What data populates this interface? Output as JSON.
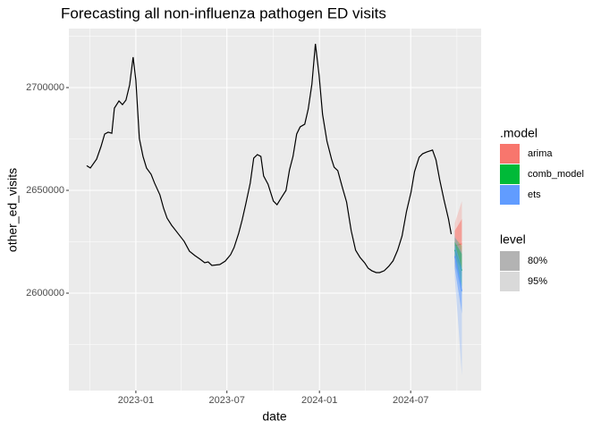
{
  "chart_data": {
    "type": "forecast",
    "title": "Forecasting all non-influenza pathogen ED visits",
    "x_label": "date",
    "y_label": "other_ed_visits",
    "xlim": [
      2022.635,
      2024.881
    ],
    "ylim": [
      2552600,
      2728700
    ],
    "xticks": [
      {
        "value": 2023.0,
        "label": "2023-01"
      },
      {
        "value": 2023.496,
        "label": "2023-07"
      },
      {
        "value": 2024.0,
        "label": "2024-01"
      },
      {
        "value": 2024.497,
        "label": "2024-07"
      }
    ],
    "x_minor_ticks": [
      2022.75,
      2023.247,
      2023.748,
      2024.249,
      2024.749
    ],
    "yticks": [
      2600000,
      2650000,
      2700000
    ],
    "y_minor_ticks": [
      2575000,
      2625000,
      2675000,
      2725000
    ],
    "grid": true,
    "history": {
      "color": "#000000",
      "x": [
        2022.732,
        2022.752,
        2022.786,
        2022.81,
        2022.83,
        2022.849,
        2022.869,
        2022.883,
        2022.908,
        2022.927,
        2022.946,
        2022.966,
        2022.985,
        2023.0,
        2023.019,
        2023.039,
        2023.058,
        2023.083,
        2023.102,
        2023.131,
        2023.151,
        2023.17,
        2023.195,
        2023.229,
        2023.263,
        2023.292,
        2023.321,
        2023.35,
        2023.375,
        2023.394,
        2023.414,
        2023.457,
        2023.487,
        2023.516,
        2023.535,
        2023.56,
        2023.579,
        2023.599,
        2023.623,
        2023.642,
        2023.662,
        2023.681,
        2023.696,
        2023.72,
        2023.749,
        2023.769,
        2023.793,
        2023.818,
        2023.837,
        2023.856,
        2023.876,
        2023.895,
        2023.92,
        2023.939,
        2023.959,
        2023.978,
        2023.998,
        2024.017,
        2024.041,
        2024.066,
        2024.08,
        2024.1,
        2024.124,
        2024.148,
        2024.173,
        2024.197,
        2024.221,
        2024.246,
        2024.265,
        2024.285,
        2024.309,
        2024.328,
        2024.353,
        2024.377,
        2024.401,
        2024.426,
        2024.45,
        2024.474,
        2024.499,
        2024.518,
        2024.543,
        2024.562,
        2024.586,
        2024.616,
        2024.635,
        2024.655,
        2024.679,
        2024.703,
        2024.718
      ],
      "values": [
        2662000,
        2660900,
        2665200,
        2671300,
        2677400,
        2678300,
        2677800,
        2690000,
        2693500,
        2691700,
        2693900,
        2701300,
        2714800,
        2703500,
        2675200,
        2666500,
        2660900,
        2657800,
        2653500,
        2647800,
        2641300,
        2636500,
        2633000,
        2629100,
        2625200,
        2620400,
        2618300,
        2616500,
        2614800,
        2615200,
        2613500,
        2613900,
        2615600,
        2618700,
        2622200,
        2629100,
        2635600,
        2643500,
        2653500,
        2665700,
        2667400,
        2666500,
        2657000,
        2653000,
        2644800,
        2643000,
        2646500,
        2650000,
        2660000,
        2666500,
        2677400,
        2680900,
        2682200,
        2689600,
        2701700,
        2721300,
        2706100,
        2687000,
        2673900,
        2665200,
        2661300,
        2659600,
        2651700,
        2644300,
        2630400,
        2620900,
        2617400,
        2614800,
        2612200,
        2610900,
        2610000,
        2610000,
        2610900,
        2613000,
        2615700,
        2620900,
        2627800,
        2639600,
        2649100,
        2659100,
        2666100,
        2667800,
        2668700,
        2669600,
        2664800,
        2655200,
        2645200,
        2636100,
        2628700
      ]
    },
    "model_legend_title": ".model",
    "level_legend_title": "level",
    "levels": [
      {
        "label": "80%",
        "color": "#b3b3b3",
        "opacity": 0.55
      },
      {
        "label": "95%",
        "color": "#d9d9d9",
        "opacity": 0.25
      }
    ],
    "forecast_x": [
      2024.737,
      2024.757,
      2024.776
    ],
    "series": [
      {
        "name": "arima",
        "color": "#F8766D",
        "values": [
          2623000,
          2623500,
          2624000
        ],
        "intervals": [
          {
            "lower": [
              2616500,
              2614300,
              2612200
            ],
            "upper": [
              2630400,
              2633200,
              2636100
            ]
          },
          {
            "lower": [
              2613000,
              2610400,
              2607800
            ],
            "upper": [
              2634000,
              2639500,
              2644800
            ]
          }
        ]
      },
      {
        "name": "comb_model",
        "color": "#00BA38",
        "values": [
          2621000,
          2616000,
          2611000
        ],
        "intervals": [
          {
            "lower": [
              2617000,
              2610000,
              2603000
            ],
            "upper": [
              2625000,
              2622000,
              2619000
            ]
          },
          {
            "lower": [
              2615000,
              2607000,
              2599000
            ],
            "upper": [
              2627000,
              2625000,
              2623000
            ]
          }
        ]
      },
      {
        "name": "ets",
        "color": "#619CFF",
        "values": [
          2618000,
          2609500,
          2601000
        ],
        "intervals": [
          {
            "lower": [
              2612000,
              2601000,
              2590000
            ],
            "upper": [
              2624000,
              2618000,
              2612000
            ]
          },
          {
            "lower": [
              2608000,
              2584000,
              2560000
            ],
            "upper": [
              2628000,
              2624000,
              2620000
            ]
          }
        ]
      }
    ]
  }
}
